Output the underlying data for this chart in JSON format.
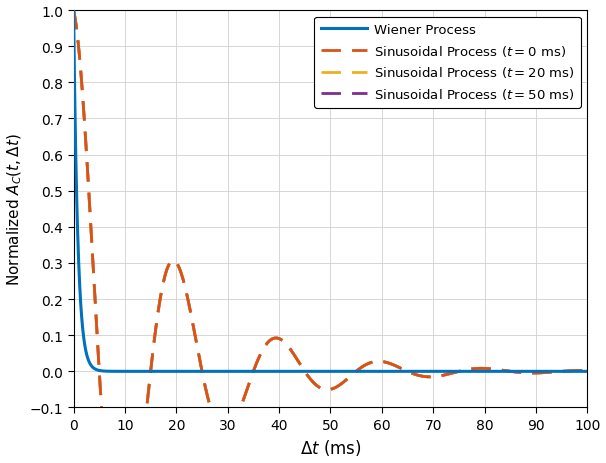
{
  "xlabel": "$\\Delta t$ (ms)",
  "ylabel": "Normalized $A_C(t, \\Delta t)$",
  "xlim": [
    0,
    100
  ],
  "ylim": [
    -0.1,
    1.0
  ],
  "yticks": [
    -0.1,
    0.0,
    0.1,
    0.2,
    0.3,
    0.4,
    0.5,
    0.6,
    0.7,
    0.8,
    0.9,
    1.0
  ],
  "xticks": [
    0,
    10,
    20,
    30,
    40,
    50,
    60,
    70,
    80,
    90,
    100
  ],
  "wiener_color": "#0072BD",
  "sin0_color": "#D95319",
  "sin20_color": "#EDB120",
  "sin50_color": "#7E2F8E",
  "wiener_lw": 2.2,
  "sin_lw": 2.0,
  "legend_labels": [
    "Wiener Process",
    "Sinusoidal Process ($t = 0$ ms)",
    "Sinusoidal Process ($t = 20$ ms)",
    "Sinusoidal Process ($t = 50$ ms)"
  ],
  "wiener_alpha": 1.2,
  "sin_freq": 0.05,
  "sin_decay": 0.06,
  "t_vals": [
    0.0,
    20.0,
    50.0
  ]
}
